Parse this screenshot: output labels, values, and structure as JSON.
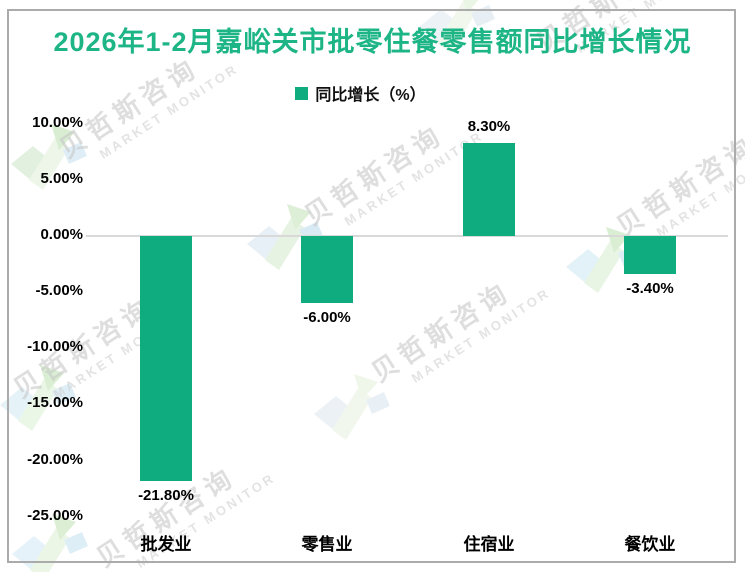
{
  "title": "2026年1-2月嘉峪关市批零住餐零售额同比增长情况",
  "legend": {
    "label": "同比增长（%）"
  },
  "watermark": {
    "cn": "贝哲斯咨询",
    "en": "MARKET MONITOR"
  },
  "colors": {
    "bar": "#0eac7f",
    "title_text": "#1db586",
    "axis_text": "#000000",
    "zero_line": "#d9d9d9",
    "frame_border": "#ababab",
    "background": "#ffffff"
  },
  "chart_data": {
    "type": "bar",
    "title": "2026年1-2月嘉峪关市批零住餐零售额同比增长情况",
    "categories": [
      "批发业",
      "零售业",
      "住宿业",
      "餐饮业"
    ],
    "series": [
      {
        "name": "同比增长（%）",
        "values": [
          -21.8,
          -6.0,
          8.3,
          -3.4
        ]
      }
    ],
    "value_labels": [
      "-21.80%",
      "-6.00%",
      "8.30%",
      "-3.40%"
    ],
    "xlabel": "",
    "ylabel": "",
    "ylim": [
      -25,
      10
    ],
    "yticks": [
      10,
      5,
      0,
      -5,
      -10,
      -15,
      -20,
      -25
    ],
    "ytick_labels": [
      "10.00%",
      "5.00%",
      "0.00%",
      "-5.00%",
      "-10.00%",
      "-15.00%",
      "-20.00%",
      "-25.00%"
    ],
    "grid": false,
    "legend_position": "top-center",
    "bar_color": "#0eac7f"
  }
}
